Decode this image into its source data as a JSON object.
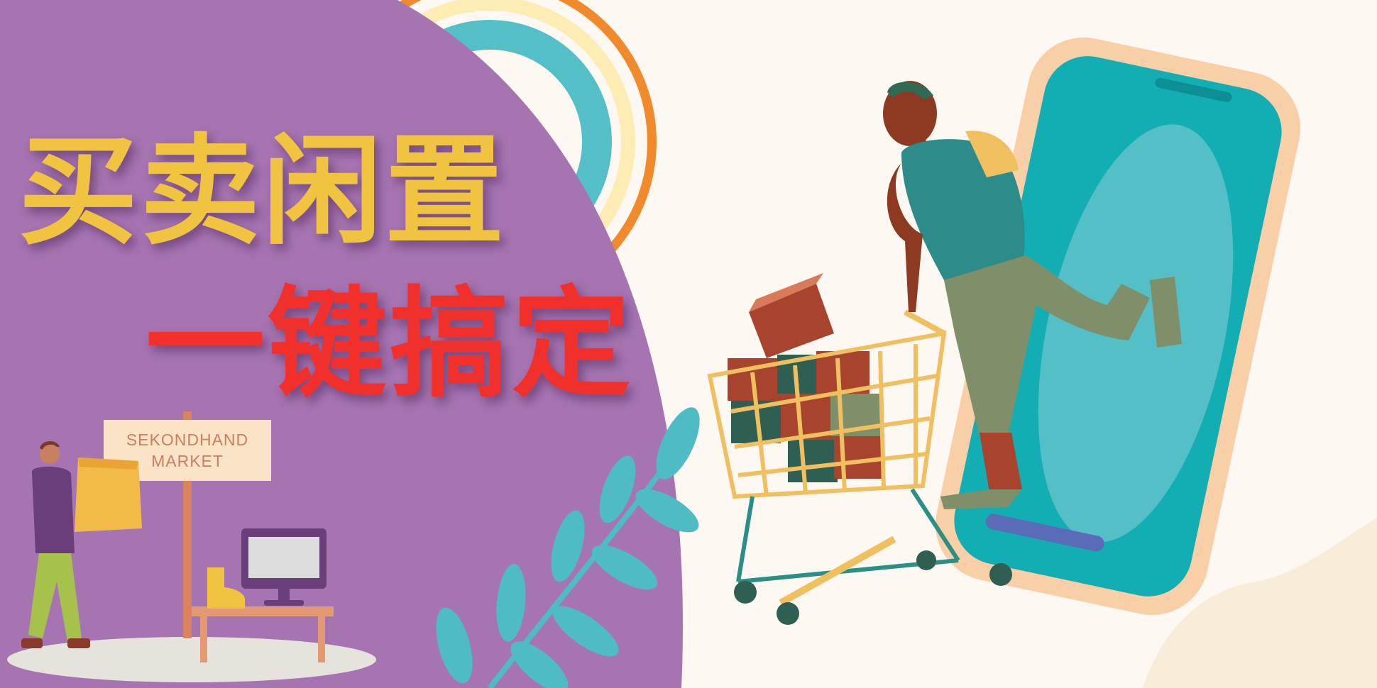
{
  "headline": {
    "line1": "买卖闲置",
    "line2": "一键搞定"
  },
  "sign": {
    "line1": "SEKONDHAND",
    "line2": "MARKET"
  },
  "colors": {
    "background": "#fdf9f2",
    "purple_panel": "#a674b0",
    "headline_line1": "#f0c440",
    "headline_line2": "#f2302b",
    "teal": "#13aeb4",
    "phone_frame": "#f8cfa6"
  },
  "illustrations": [
    "rainbow-arcs",
    "man-riding-shopping-cart",
    "smartphone",
    "shopping-cart",
    "cardboard-boxes",
    "leaf-branch",
    "person-carrying-box",
    "sign-post",
    "computer-monitor",
    "boot",
    "table"
  ]
}
